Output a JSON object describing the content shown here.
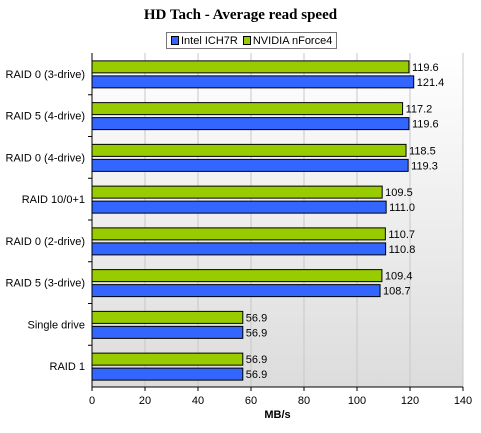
{
  "chart_data": {
    "type": "bar",
    "orientation": "horizontal",
    "title": "HD Tach - Average read speed",
    "xlabel": "MB/s",
    "ylabel": "",
    "xlim": [
      0,
      140
    ],
    "xticks": [
      "0",
      "20",
      "40",
      "60",
      "80",
      "100",
      "120",
      "140"
    ],
    "categories": [
      "RAID 0 (3-drive)",
      "RAID 5 (4-drive)",
      "RAID 0 (4-drive)",
      "RAID 10/0+1",
      "RAID 0 (2-drive)",
      "RAID 5 (3-drive)",
      "Single drive",
      "RAID 1"
    ],
    "series": [
      {
        "name": "NVIDIA nForce4",
        "color": "#99cc00",
        "values": [
          119.6,
          117.2,
          118.5,
          109.5,
          110.7,
          109.4,
          56.9,
          56.9
        ]
      },
      {
        "name": "Intel ICH7R",
        "color": "#3366ff",
        "values": [
          121.4,
          119.6,
          119.3,
          111.0,
          110.8,
          108.7,
          56.9,
          56.9
        ]
      }
    ],
    "legend_order": [
      1,
      0
    ],
    "legend_position": "top",
    "grid": "vertical"
  }
}
